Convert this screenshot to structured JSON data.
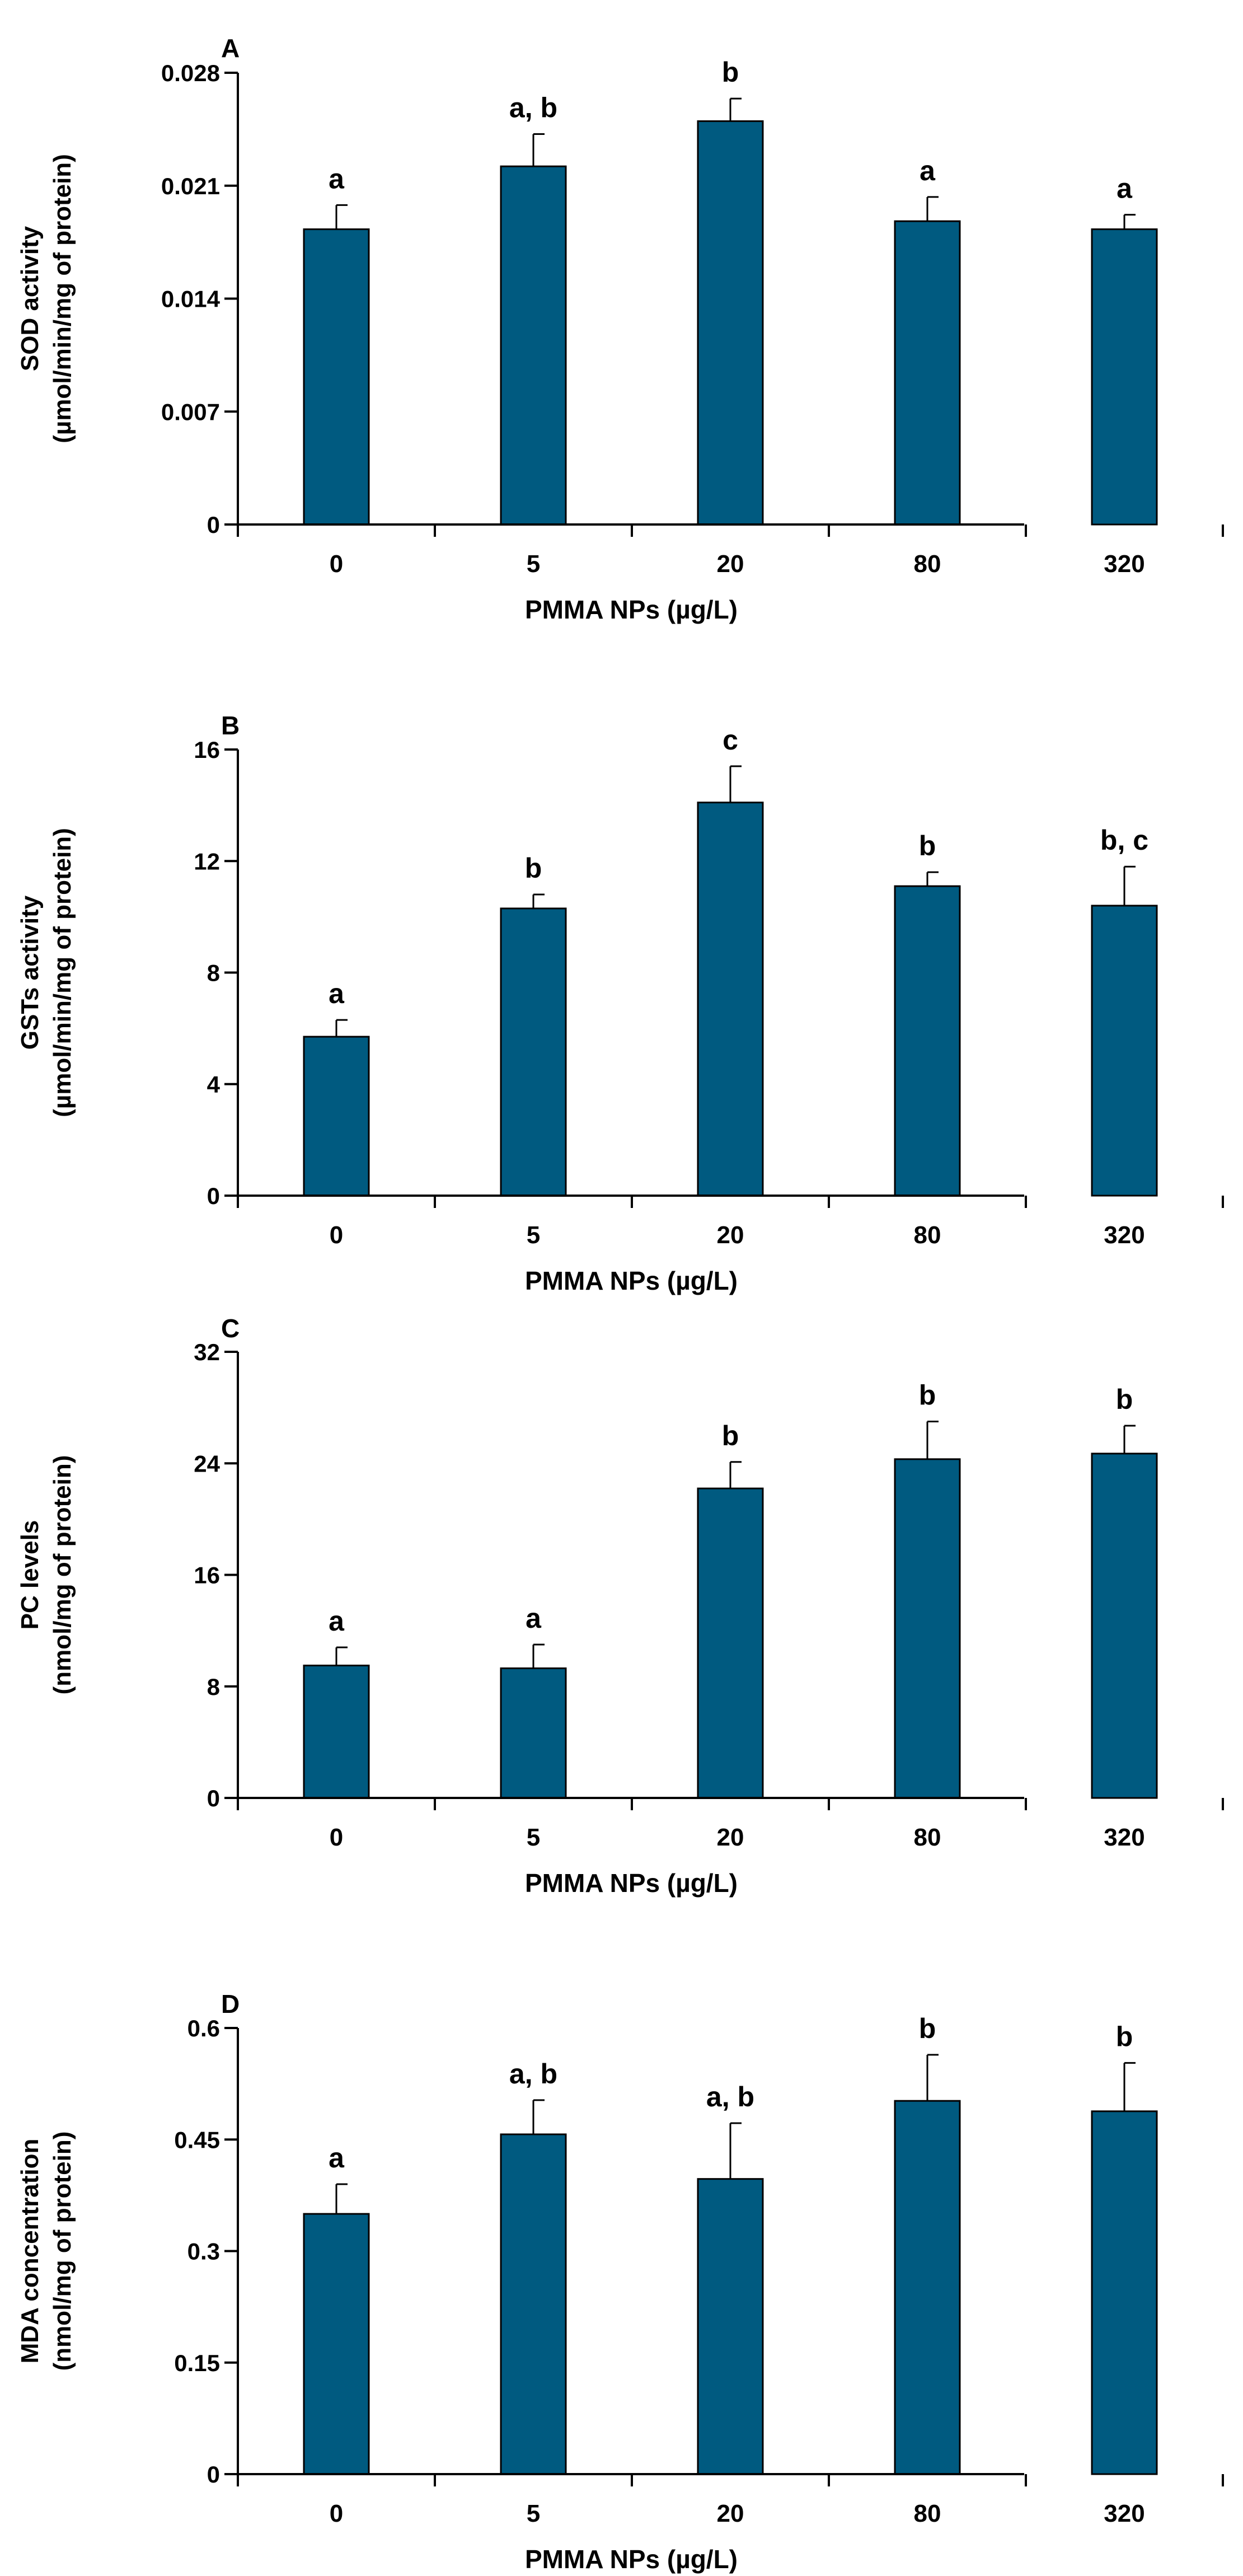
{
  "colors": {
    "bar": "#005a80",
    "axis": "#000000",
    "background": "#ffffff"
  },
  "chart_data": [
    {
      "panel": "A",
      "type": "bar",
      "categories": [
        "0",
        "5",
        "20",
        "80",
        "320"
      ],
      "values": [
        0.0183,
        0.0222,
        0.025,
        0.0188,
        0.0183
      ],
      "errors": [
        0.0015,
        0.002,
        0.0014,
        0.0015,
        0.0009
      ],
      "significance": [
        "a",
        "a, b",
        "b",
        "a",
        "a"
      ],
      "ylim": [
        0,
        0.028
      ],
      "yticks": [
        "0",
        "0.007",
        "0.014",
        "0.021",
        "0.028"
      ],
      "ylabel": [
        "SOD activity",
        "(µmol/min/mg of protein)"
      ],
      "xlabel": "PMMA NPs (µg/L)",
      "grid": false
    },
    {
      "panel": "B",
      "type": "bar",
      "categories": [
        "0",
        "5",
        "20",
        "80",
        "320"
      ],
      "values": [
        5.7,
        10.3,
        14.1,
        11.1,
        10.4
      ],
      "errors": [
        0.6,
        0.5,
        1.3,
        0.5,
        1.4
      ],
      "significance": [
        "a",
        "b",
        "c",
        "b",
        "b, c"
      ],
      "ylim": [
        0,
        16
      ],
      "yticks": [
        "0",
        "4",
        "8",
        "12",
        "16"
      ],
      "ylabel": [
        "GSTs activity",
        "(µmol/min/mg of protein)"
      ],
      "xlabel": "PMMA NPs (µg/L)",
      "grid": false
    },
    {
      "panel": "C",
      "type": "bar",
      "categories": [
        "0",
        "5",
        "20",
        "80",
        "320"
      ],
      "values": [
        9.5,
        9.3,
        22.2,
        24.3,
        24.7
      ],
      "errors": [
        1.3,
        1.7,
        1.9,
        2.7,
        2.0
      ],
      "significance": [
        "a",
        "a",
        "b",
        "b",
        "b"
      ],
      "ylim": [
        0,
        32
      ],
      "yticks": [
        "0",
        "8",
        "16",
        "24",
        "32"
      ],
      "ylabel": [
        "PC levels",
        "(nmol/mg of protein)"
      ],
      "xlabel": "PMMA NPs (µg/L)",
      "grid": false
    },
    {
      "panel": "D",
      "type": "bar",
      "categories": [
        "0",
        "5",
        "20",
        "80",
        "320"
      ],
      "values": [
        0.35,
        0.457,
        0.397,
        0.502,
        0.488
      ],
      "errors": [
        0.04,
        0.046,
        0.075,
        0.062,
        0.065
      ],
      "significance": [
        "a",
        "a, b",
        "a, b",
        "b",
        "b"
      ],
      "ylim": [
        0,
        0.6
      ],
      "yticks": [
        "0",
        "0.15",
        "0.3",
        "0.45",
        "0.6"
      ],
      "ylabel": [
        "MDA concentration",
        "(nmol/mg of protein)"
      ],
      "xlabel": "PMMA NPs (µg/L)",
      "grid": false
    }
  ]
}
